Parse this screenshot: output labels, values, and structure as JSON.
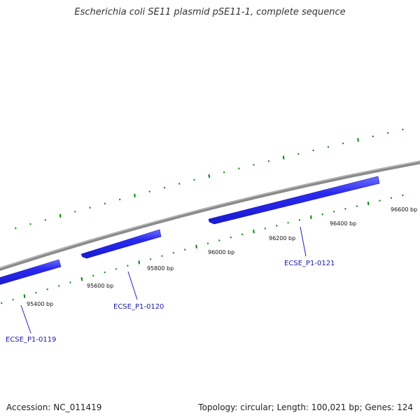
{
  "title": "Escherichia coli SE11 plasmid pSE11-1, complete sequence",
  "footer": {
    "accession": "Accession: NC_011419",
    "summary": "Topology: circular; Length: 100,021 bp; Genes: 124"
  },
  "colors": {
    "backbone": "#8a8a8a",
    "gene_fill": "#1f1fe6",
    "gene_highlight": "#6e6eff",
    "tick": "#1e8c1e",
    "gene_label": "#1a1aa6"
  },
  "scale_labels": [
    "95400 bp",
    "95600 bp",
    "95800 bp",
    "96000 bp",
    "96200 bp",
    "96400 bp",
    "96600 bp"
  ],
  "genes": [
    {
      "label": "ECSE_P1-0119"
    },
    {
      "label": "ECSE_P1-0120"
    },
    {
      "label": "ECSE_P1-0121"
    }
  ]
}
